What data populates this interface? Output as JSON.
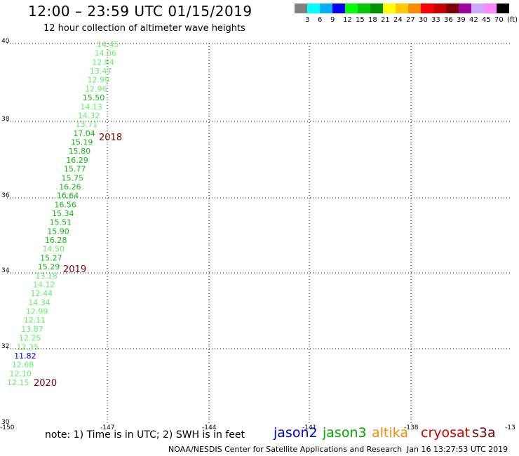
{
  "header": {
    "title": "12:00 – 23:59 UTC 01/15/2019",
    "subtitle": "12 hour collection of altimeter wave heights"
  },
  "legend": {
    "unit": "(ft)",
    "colors": [
      "#808080",
      "#00ffff",
      "#00b0ff",
      "#0000ff",
      "#00ff00",
      "#00c800",
      "#009000",
      "#ffff00",
      "#ffc800",
      "#ff8c00",
      "#ff0000",
      "#c80000",
      "#800000",
      "#a000a0",
      "#ccaaff",
      "#ff88ff",
      "#000000"
    ],
    "labels": [
      "3",
      "6",
      "9",
      "12",
      "15",
      "18",
      "21",
      "24",
      "27",
      "30",
      "33",
      "36",
      "39",
      "42",
      "45",
      "70"
    ]
  },
  "axes": {
    "y_ticks": [
      "30",
      "32",
      "34",
      "36",
      "38",
      "40"
    ],
    "x_ticks": [
      "-150",
      "-147",
      "-144",
      "-141",
      "-138",
      "-13"
    ]
  },
  "track": [
    {
      "v": "14.45",
      "c": "#66ee66"
    },
    {
      "v": "14.06",
      "c": "#66ee66"
    },
    {
      "v": "12.84",
      "c": "#66ee66"
    },
    {
      "v": "13.47",
      "c": "#66ee66"
    },
    {
      "v": "12.99",
      "c": "#66ee66"
    },
    {
      "v": "12.96",
      "c": "#66ee66"
    },
    {
      "v": "15.50",
      "c": "#11bb11"
    },
    {
      "v": "14.13",
      "c": "#66ee66"
    },
    {
      "v": "14.32",
      "c": "#66ee66"
    },
    {
      "v": "13.71",
      "c": "#66ee66"
    },
    {
      "v": "17.04",
      "c": "#11bb11"
    },
    {
      "v": "15.19",
      "c": "#11bb11"
    },
    {
      "v": "15.80",
      "c": "#11bb11"
    },
    {
      "v": "16.29",
      "c": "#11bb11"
    },
    {
      "v": "15.77",
      "c": "#11bb11"
    },
    {
      "v": "15.75",
      "c": "#11bb11"
    },
    {
      "v": "16.26",
      "c": "#11bb11"
    },
    {
      "v": "16.64",
      "c": "#11bb11"
    },
    {
      "v": "16.56",
      "c": "#11bb11"
    },
    {
      "v": "15.34",
      "c": "#11bb11"
    },
    {
      "v": "15.51",
      "c": "#11bb11"
    },
    {
      "v": "15.90",
      "c": "#11bb11"
    },
    {
      "v": "16.28",
      "c": "#11bb11"
    },
    {
      "v": "14.50",
      "c": "#66ee66"
    },
    {
      "v": "15.27",
      "c": "#11bb11"
    },
    {
      "v": "15.29",
      "c": "#11bb11"
    },
    {
      "v": "13.18",
      "c": "#66ee66"
    },
    {
      "v": "14.12",
      "c": "#66ee66"
    },
    {
      "v": "12.44",
      "c": "#66ee66"
    },
    {
      "v": "14.34",
      "c": "#66ee66"
    },
    {
      "v": "12.99",
      "c": "#66ee66"
    },
    {
      "v": "12.11",
      "c": "#66ee66"
    },
    {
      "v": "13.87",
      "c": "#66ee66"
    },
    {
      "v": "12.25",
      "c": "#66ee66"
    },
    {
      "v": "12.35",
      "c": "#66ee66"
    },
    {
      "v": "11.82",
      "c": "#0000cc"
    },
    {
      "v": "12.68",
      "c": "#66ee66"
    },
    {
      "v": "12.10",
      "c": "#66ee66"
    },
    {
      "v": "12.15",
      "c": "#66ee66"
    }
  ],
  "year_labels": [
    "2018",
    "2019",
    "2020"
  ],
  "year_color": "#800000",
  "note": "note:  1) Time is in UTC;  2) SWH is in feet",
  "satellites": [
    {
      "name": "jason2",
      "color": "#0000cc"
    },
    {
      "name": "jason3",
      "color": "#00aa00"
    },
    {
      "name": "altika",
      "color": "#ff8c00"
    },
    {
      "name": "cryosat",
      "color": "#cc0000"
    },
    {
      "name": "s3a",
      "color": "#800000"
    }
  ],
  "footer": {
    "credit": "NOAA/NESDIS Center for Satellite Applications and Research",
    "timestamp": "Jan 16 13:27:53 UTC 2019"
  }
}
